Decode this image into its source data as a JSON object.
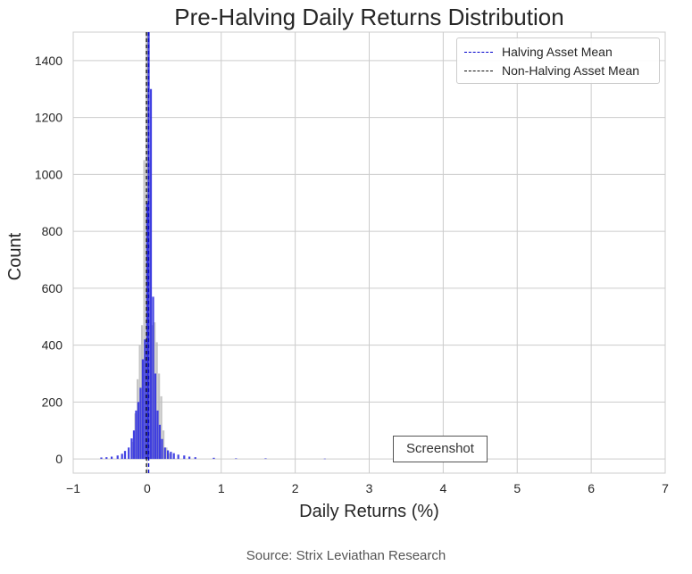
{
  "chart_data": {
    "type": "bar",
    "title": "Pre-Halving Daily Returns Distribution",
    "xlabel": "Daily Returns (%)",
    "ylabel": "Count",
    "xlim": [
      -1,
      7
    ],
    "ylim": [
      -50,
      1500
    ],
    "x_ticks": [
      -1,
      0,
      1,
      2,
      3,
      4,
      5,
      6,
      7
    ],
    "x_tick_labels": [
      "−1",
      "0",
      "1",
      "2",
      "3",
      "4",
      "5",
      "6",
      "7"
    ],
    "y_ticks": [
      0,
      200,
      400,
      600,
      800,
      1000,
      1200,
      1400
    ],
    "grid": true,
    "legend_position": "top-right",
    "series": [
      {
        "name": "",
        "color": "#2f2fe0",
        "bins": [
          {
            "x": -0.62,
            "count": 5
          },
          {
            "x": -0.55,
            "count": 6
          },
          {
            "x": -0.48,
            "count": 8
          },
          {
            "x": -0.4,
            "count": 12
          },
          {
            "x": -0.34,
            "count": 18
          },
          {
            "x": -0.3,
            "count": 28
          },
          {
            "x": -0.25,
            "count": 40
          },
          {
            "x": -0.21,
            "count": 72
          },
          {
            "x": -0.18,
            "count": 100
          },
          {
            "x": -0.15,
            "count": 170
          },
          {
            "x": -0.12,
            "count": 200
          },
          {
            "x": -0.09,
            "count": 250
          },
          {
            "x": -0.06,
            "count": 350
          },
          {
            "x": -0.03,
            "count": 420
          },
          {
            "x": 0.0,
            "count": 900
          },
          {
            "x": 0.02,
            "count": 1500
          },
          {
            "x": 0.05,
            "count": 1300
          },
          {
            "x": 0.08,
            "count": 570
          },
          {
            "x": 0.11,
            "count": 300
          },
          {
            "x": 0.14,
            "count": 170
          },
          {
            "x": 0.17,
            "count": 120
          },
          {
            "x": 0.2,
            "count": 70
          },
          {
            "x": 0.24,
            "count": 40
          },
          {
            "x": 0.28,
            "count": 30
          },
          {
            "x": 0.32,
            "count": 25
          },
          {
            "x": 0.36,
            "count": 20
          },
          {
            "x": 0.42,
            "count": 15
          },
          {
            "x": 0.5,
            "count": 12
          },
          {
            "x": 0.57,
            "count": 8
          },
          {
            "x": 0.65,
            "count": 6
          },
          {
            "x": 0.9,
            "count": 4
          },
          {
            "x": 1.2,
            "count": 2
          },
          {
            "x": 1.6,
            "count": 2
          },
          {
            "x": 2.4,
            "count": 1
          }
        ]
      },
      {
        "name": "",
        "color": "#bbbbbb",
        "bins": [
          {
            "x": -0.2,
            "count": 60
          },
          {
            "x": -0.16,
            "count": 160
          },
          {
            "x": -0.13,
            "count": 280
          },
          {
            "x": -0.1,
            "count": 400
          },
          {
            "x": -0.07,
            "count": 470
          },
          {
            "x": -0.04,
            "count": 1050
          },
          {
            "x": -0.01,
            "count": 1500
          },
          {
            "x": 0.01,
            "count": 1500
          },
          {
            "x": 0.04,
            "count": 1050
          },
          {
            "x": 0.07,
            "count": 470
          },
          {
            "x": 0.1,
            "count": 480
          },
          {
            "x": 0.13,
            "count": 410
          },
          {
            "x": 0.16,
            "count": 300
          },
          {
            "x": 0.19,
            "count": 220
          },
          {
            "x": 0.22,
            "count": 100
          },
          {
            "x": 0.26,
            "count": 40
          },
          {
            "x": 0.3,
            "count": 20
          }
        ]
      }
    ],
    "mean_lines": [
      {
        "name": "Halving Asset Mean",
        "x": 0.02,
        "color": "#0000cc",
        "style": "dashed"
      },
      {
        "name": "Non-Halving Asset Mean",
        "x": -0.01,
        "color": "#111111",
        "style": "dashed"
      }
    ]
  },
  "annotations": {
    "stamp": "Screenshot",
    "source": "Source: Strix Leviathan Research"
  }
}
